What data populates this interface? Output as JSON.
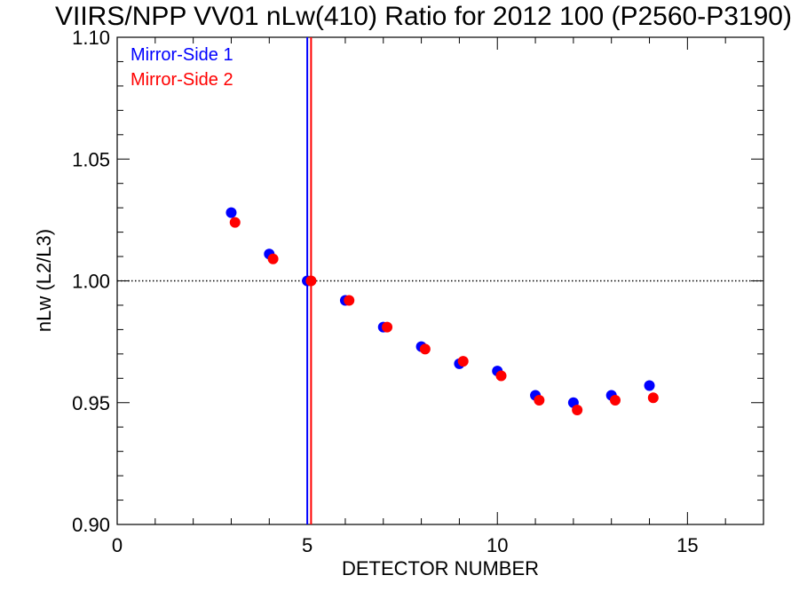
{
  "chart_data": {
    "type": "scatter",
    "title": "VIIRS/NPP VV01 nLw(410) Ratio for 2012 100 (P2560-P3190)",
    "xlabel": "DETECTOR NUMBER",
    "ylabel": "nLw (L2/L3)",
    "xlim": [
      0,
      17
    ],
    "ylim": [
      0.9,
      1.1
    ],
    "x_ticks": [
      0,
      5,
      10,
      15
    ],
    "x_tick_labels": [
      "0",
      "5",
      "10",
      "15"
    ],
    "y_ticks": [
      0.9,
      0.95,
      1.0,
      1.05,
      1.1
    ],
    "y_tick_labels": [
      "0.90",
      "0.95",
      "1.00",
      "1.05",
      "1.10"
    ],
    "reference_line_y": 1.0,
    "grid": false,
    "legend_position": "top-left",
    "series": [
      {
        "name": "Mirror-Side 1",
        "color": "#0000ff",
        "x": [
          3,
          4,
          5,
          6,
          7,
          8,
          9,
          10,
          11,
          12,
          13,
          14
        ],
        "y": [
          1.028,
          1.011,
          1.0,
          0.992,
          0.981,
          0.973,
          0.966,
          0.963,
          0.953,
          0.95,
          0.953,
          0.957
        ],
        "vertical_line_x": 5.0
      },
      {
        "name": "Mirror-Side 2",
        "color": "#ff0000",
        "x": [
          3.1,
          4.1,
          5.1,
          6.1,
          7.1,
          8.1,
          9.1,
          10.1,
          11.1,
          12.1,
          13.1,
          14.1
        ],
        "y": [
          1.024,
          1.009,
          1.0,
          0.992,
          0.981,
          0.972,
          0.967,
          0.961,
          0.951,
          0.947,
          0.951,
          0.952
        ],
        "vertical_line_x": 5.1
      }
    ]
  }
}
